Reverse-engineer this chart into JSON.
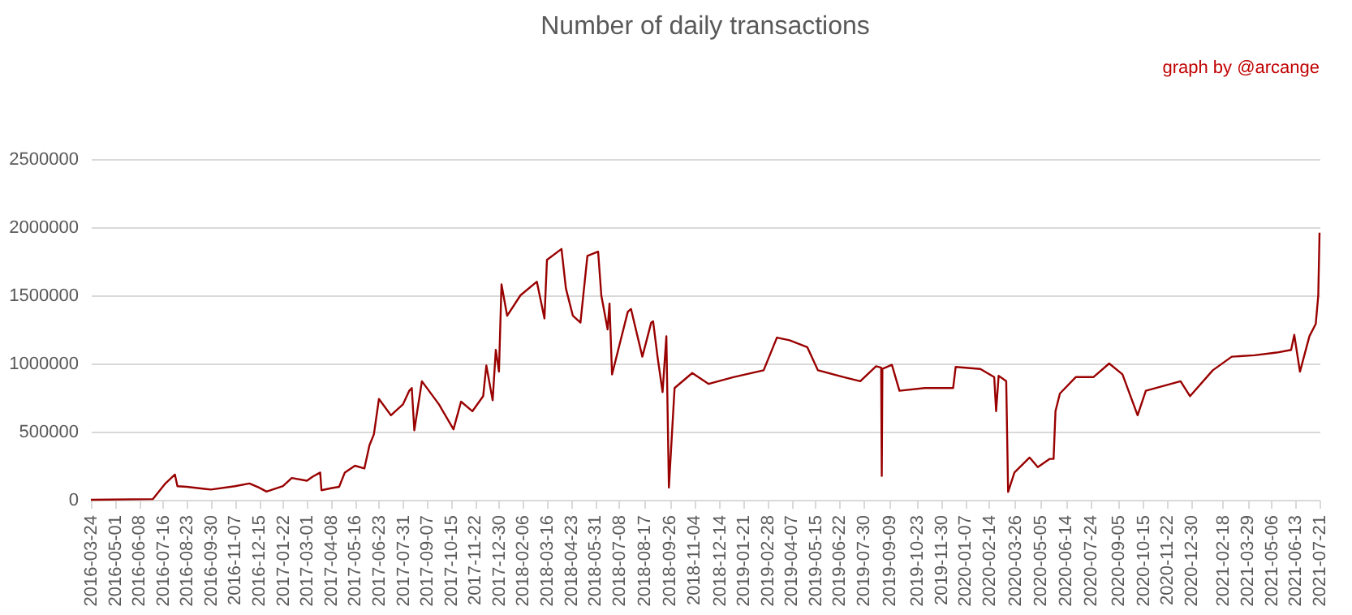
{
  "chart_data": {
    "type": "line",
    "title": "Number of daily transactions",
    "annotations": [
      "graph by @arcange"
    ],
    "x": [
      "2016-03-24",
      "2016-06-30",
      "2016-07-20",
      "2016-08-04",
      "2016-08-08",
      "2016-08-23",
      "2016-09-30",
      "2016-11-07",
      "2016-11-30",
      "2016-12-15",
      "2016-12-27",
      "2017-01-22",
      "2017-02-05",
      "2017-03-01",
      "2017-03-10",
      "2017-03-22",
      "2017-03-24",
      "2017-04-08",
      "2017-04-21",
      "2017-04-30",
      "2017-05-16",
      "2017-05-31",
      "2017-06-08",
      "2017-06-15",
      "2017-06-23",
      "2017-07-12",
      "2017-07-31",
      "2017-08-10",
      "2017-08-14",
      "2017-08-18",
      "2017-08-30",
      "2017-09-26",
      "2017-10-19",
      "2017-10-31",
      "2017-11-18",
      "2017-12-05",
      "2017-12-10",
      "2017-12-20",
      "2017-12-25",
      "2017-12-30",
      "2018-01-03",
      "2018-01-12",
      "2018-02-02",
      "2018-02-28",
      "2018-03-12",
      "2018-03-16",
      "2018-04-08",
      "2018-04-15",
      "2018-04-26",
      "2018-05-08",
      "2018-05-19",
      "2018-06-05",
      "2018-06-10",
      "2018-06-20",
      "2018-06-23",
      "2018-06-27",
      "2018-07-22",
      "2018-07-27",
      "2018-08-14",
      "2018-08-28",
      "2018-08-31",
      "2018-09-07",
      "2018-09-15",
      "2018-09-21",
      "2018-09-25",
      "2018-10-04",
      "2018-11-01",
      "2018-11-27",
      "2019-01-05",
      "2019-02-22",
      "2019-03-15",
      "2019-04-04",
      "2019-05-02",
      "2019-05-19",
      "2019-06-29",
      "2019-07-25",
      "2019-08-19",
      "2019-08-27",
      "2019-08-28",
      "2019-08-29",
      "2019-09-13",
      "2019-09-25",
      "2019-11-04",
      "2019-12-19",
      "2019-12-23",
      "2020-01-31",
      "2020-02-22",
      "2020-02-25",
      "2020-02-29",
      "2020-03-12",
      "2020-03-15",
      "2020-03-25",
      "2020-04-18",
      "2020-05-01",
      "2020-05-20",
      "2020-05-26",
      "2020-05-29",
      "2020-06-05",
      "2020-06-30",
      "2020-07-28",
      "2020-08-22",
      "2020-09-12",
      "2020-10-06",
      "2020-10-19",
      "2020-12-13",
      "2020-12-28",
      "2021-02-02",
      "2021-03-04",
      "2021-04-09",
      "2021-05-14",
      "2021-06-06",
      "2021-06-11",
      "2021-06-20",
      "2021-07-05",
      "2021-07-15",
      "2021-07-19",
      "2021-07-21"
    ],
    "series": [
      {
        "color": "#990000",
        "values": [
          0,
          5000,
          120000,
          185000,
          100000,
          95000,
          75000,
          100000,
          120000,
          90000,
          60000,
          100000,
          160000,
          140000,
          170000,
          200000,
          70000,
          85000,
          95000,
          200000,
          250000,
          230000,
          400000,
          480000,
          740000,
          620000,
          700000,
          800000,
          820000,
          510000,
          870000,
          700000,
          517000,
          720000,
          650000,
          760000,
          985000,
          730000,
          1100000,
          940000,
          1580000,
          1350000,
          1500000,
          1600000,
          1330000,
          1760000,
          1840000,
          1550000,
          1350000,
          1300000,
          1790000,
          1820000,
          1500000,
          1250000,
          1440000,
          920000,
          1380000,
          1400000,
          1050000,
          1300000,
          1310000,
          1050000,
          790000,
          1200000,
          90000,
          820000,
          930000,
          850000,
          900000,
          950000,
          1190000,
          1170000,
          1120000,
          950000,
          900000,
          870000,
          980000,
          970000,
          175000,
          960000,
          990000,
          800000,
          820000,
          820000,
          975000,
          960000,
          900000,
          650000,
          910000,
          870000,
          58000,
          200000,
          310000,
          240000,
          300000,
          300000,
          650000,
          780000,
          900000,
          900000,
          1000000,
          920000,
          620000,
          800000,
          870000,
          760000,
          950000,
          1050000,
          1060000,
          1080000,
          1100000,
          1210000,
          940000,
          1200000,
          1290000,
          1500000,
          1960000
        ]
      }
    ],
    "ylim": [
      0,
      2500000
    ],
    "yticks": [
      0,
      500000,
      1000000,
      1500000,
      2000000,
      2500000
    ],
    "xlim": [
      "2016-03-24",
      "2021-07-21"
    ],
    "xticks": [
      "2016-03-24",
      "2016-05-01",
      "2016-06-08",
      "2016-07-16",
      "2016-08-23",
      "2016-09-30",
      "2016-11-07",
      "2016-12-15",
      "2017-01-22",
      "2017-03-01",
      "2017-04-08",
      "2017-05-16",
      "2017-06-23",
      "2017-07-31",
      "2017-09-07",
      "2017-10-15",
      "2017-11-22",
      "2017-12-30",
      "2018-02-06",
      "2018-03-16",
      "2018-04-23",
      "2018-05-31",
      "2018-07-08",
      "2018-08-17",
      "2018-09-26",
      "2018-11-04",
      "2018-12-14",
      "2019-01-21",
      "2019-02-28",
      "2019-04-07",
      "2019-05-15",
      "2019-06-22",
      "2019-07-30",
      "2019-09-09",
      "2019-10-23",
      "2019-11-30",
      "2020-01-07",
      "2020-02-14",
      "2020-03-26",
      "2020-05-05",
      "2020-06-14",
      "2020-07-24",
      "2020-09-05",
      "2020-10-15",
      "2020-11-22",
      "2020-12-30",
      "2021-02-18",
      "2021-03-29",
      "2021-05-06",
      "2021-06-13",
      "2021-07-21"
    ],
    "grid": "y",
    "legend": false,
    "marker": "none",
    "line_style": "solid"
  }
}
